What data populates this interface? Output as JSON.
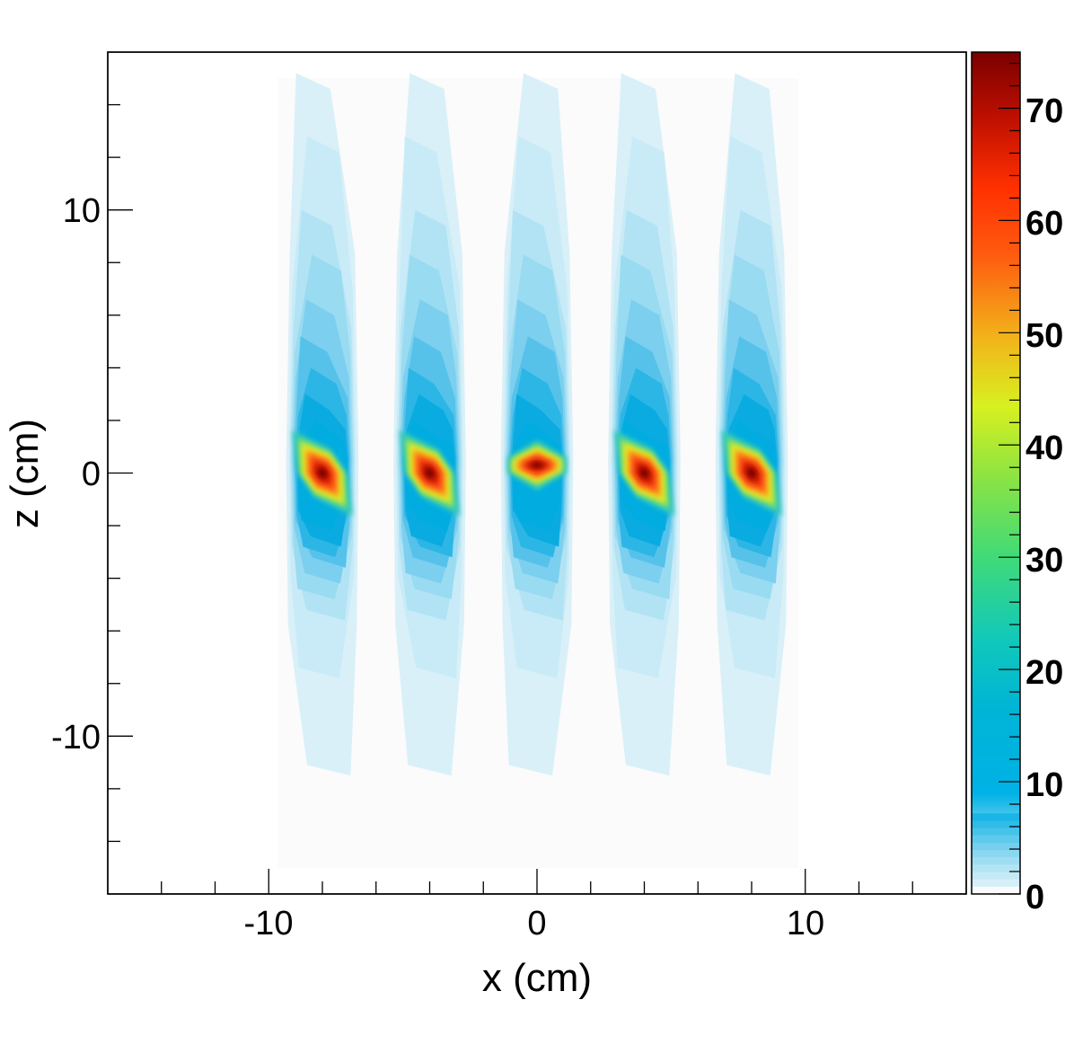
{
  "chart_data": {
    "type": "heatmap",
    "title": "",
    "xlabel": "x (cm)",
    "ylabel": "z (cm)",
    "xlim": [
      -16,
      16
    ],
    "ylim": [
      -16,
      16
    ],
    "x_ticks": [
      {
        "value": -10,
        "label": "-10"
      },
      {
        "value": 0,
        "label": "0"
      },
      {
        "value": 10,
        "label": "10"
      }
    ],
    "y_ticks": [
      {
        "value": -10,
        "label": "-10"
      },
      {
        "value": 0,
        "label": "0"
      },
      {
        "value": 10,
        "label": "10"
      }
    ],
    "colorbar": {
      "range": [
        0,
        75
      ],
      "ticks": [
        {
          "value": 0,
          "label": "0"
        },
        {
          "value": 10,
          "label": "10"
        },
        {
          "value": 20,
          "label": "20"
        },
        {
          "value": 30,
          "label": "30"
        },
        {
          "value": 40,
          "label": "40"
        },
        {
          "value": 50,
          "label": "50"
        },
        {
          "value": 60,
          "label": "60"
        },
        {
          "value": 70,
          "label": "70"
        }
      ],
      "colormap": "rainbow (white-blue-cyan-green-yellow-red-dark red)"
    },
    "sources": [
      {
        "x": -8.0,
        "z": 0.0,
        "peak": 75
      },
      {
        "x": -4.0,
        "z": 0.0,
        "peak": 75
      },
      {
        "x": 0.0,
        "z": 0.3,
        "peak": 75
      },
      {
        "x": 4.0,
        "z": 0.0,
        "peak": 75
      },
      {
        "x": 8.0,
        "z": 0.0,
        "peak": 75
      }
    ],
    "data_extent": {
      "x": [
        -10,
        10
      ],
      "z": [
        -15,
        15
      ]
    },
    "grid": false
  }
}
